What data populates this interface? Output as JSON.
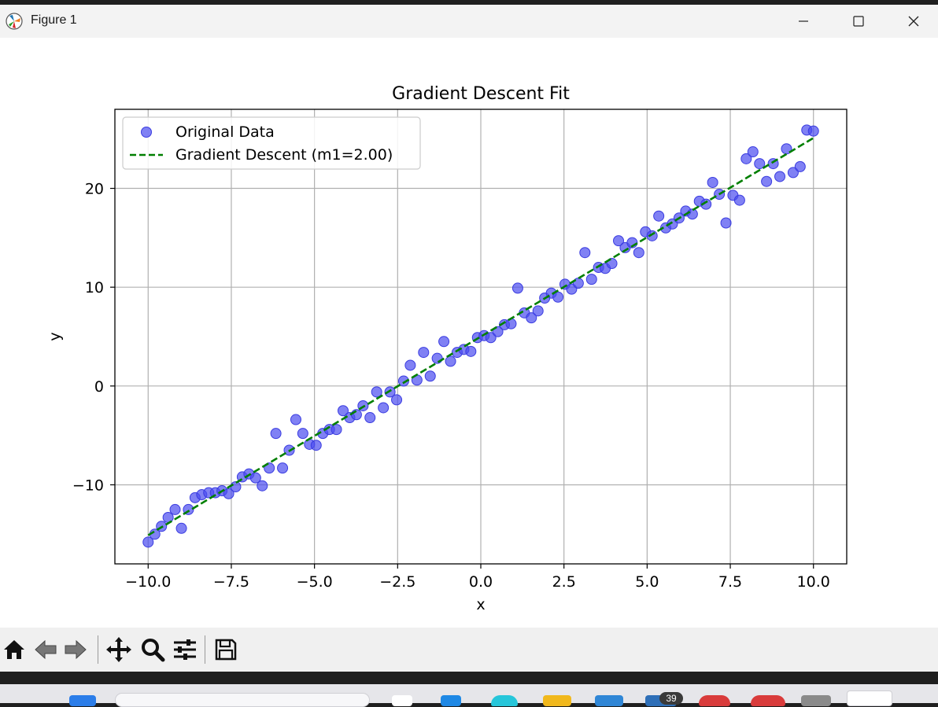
{
  "window": {
    "title": "Figure 1",
    "controls": {
      "minimize": "minimize-icon",
      "maximize": "maximize-icon",
      "close": "close-icon"
    }
  },
  "toolbar": {
    "buttons": [
      "home-icon",
      "back-icon",
      "forward-icon",
      "pan-icon",
      "zoom-icon",
      "configure-subplots-icon",
      "save-icon"
    ]
  },
  "taskbar": {
    "badge": "39"
  },
  "chart_data": {
    "type": "scatter",
    "title": "Gradient Descent Fit",
    "xlabel": "x",
    "ylabel": "y",
    "xlim": [
      -11,
      11
    ],
    "ylim": [
      -18,
      28
    ],
    "xticks": [
      -10.0,
      -7.5,
      -5.0,
      -2.5,
      0.0,
      2.5,
      5.0,
      7.5,
      10.0
    ],
    "xtick_labels": [
      "−10.0",
      "−7.5",
      "−5.0",
      "−2.5",
      "0.0",
      "2.5",
      "5.0",
      "7.5",
      "10.0"
    ],
    "yticks": [
      -10,
      0,
      10,
      20
    ],
    "ytick_labels": [
      "−10",
      "0",
      "10",
      "20"
    ],
    "grid": true,
    "legend_position": "top-left",
    "series": [
      {
        "name": "Original Data",
        "kind": "scatter",
        "color": "#4a4cf0",
        "points": [
          [
            -10.0,
            -15.8
          ],
          [
            -9.8,
            -15.0
          ],
          [
            -9.6,
            -14.2
          ],
          [
            -9.4,
            -13.3
          ],
          [
            -9.19,
            -12.5
          ],
          [
            -9.0,
            -14.4
          ],
          [
            -8.79,
            -12.5
          ],
          [
            -8.59,
            -11.3
          ],
          [
            -8.39,
            -11.0
          ],
          [
            -8.18,
            -10.8
          ],
          [
            -7.98,
            -10.8
          ],
          [
            -7.78,
            -10.6
          ],
          [
            -7.58,
            -10.9
          ],
          [
            -7.37,
            -10.2
          ],
          [
            -7.17,
            -9.2
          ],
          [
            -6.97,
            -8.9
          ],
          [
            -6.77,
            -9.3
          ],
          [
            -6.57,
            -10.1
          ],
          [
            -6.36,
            -8.3
          ],
          [
            -6.16,
            -4.8
          ],
          [
            -5.96,
            -8.3
          ],
          [
            -5.76,
            -6.5
          ],
          [
            -5.56,
            -3.4
          ],
          [
            -5.35,
            -4.8
          ],
          [
            -5.15,
            -5.9
          ],
          [
            -4.95,
            -6.0
          ],
          [
            -4.75,
            -4.8
          ],
          [
            -4.55,
            -4.4
          ],
          [
            -4.34,
            -4.4
          ],
          [
            -4.14,
            -2.5
          ],
          [
            -3.94,
            -3.2
          ],
          [
            -3.74,
            -2.9
          ],
          [
            -3.54,
            -2.0
          ],
          [
            -3.33,
            -3.2
          ],
          [
            -3.13,
            -0.6
          ],
          [
            -2.93,
            -2.2
          ],
          [
            -2.73,
            -0.6
          ],
          [
            -2.53,
            -1.4
          ],
          [
            -2.32,
            0.5
          ],
          [
            -2.12,
            2.1
          ],
          [
            -1.92,
            0.6
          ],
          [
            -1.72,
            3.4
          ],
          [
            -1.52,
            1.0
          ],
          [
            -1.31,
            2.8
          ],
          [
            -1.11,
            4.5
          ],
          [
            -0.91,
            2.5
          ],
          [
            -0.71,
            3.4
          ],
          [
            -0.51,
            3.7
          ],
          [
            -0.3,
            3.5
          ],
          [
            -0.1,
            4.9
          ],
          [
            0.1,
            5.1
          ],
          [
            0.3,
            4.9
          ],
          [
            0.51,
            5.5
          ],
          [
            0.71,
            6.2
          ],
          [
            0.91,
            6.3
          ],
          [
            1.11,
            9.9
          ],
          [
            1.31,
            7.4
          ],
          [
            1.52,
            6.9
          ],
          [
            1.72,
            7.6
          ],
          [
            1.92,
            8.9
          ],
          [
            2.12,
            9.4
          ],
          [
            2.32,
            9.0
          ],
          [
            2.53,
            10.3
          ],
          [
            2.73,
            9.8
          ],
          [
            2.93,
            10.4
          ],
          [
            3.13,
            13.5
          ],
          [
            3.33,
            10.8
          ],
          [
            3.54,
            12.0
          ],
          [
            3.74,
            11.9
          ],
          [
            3.94,
            12.4
          ],
          [
            4.14,
            14.7
          ],
          [
            4.34,
            14.0
          ],
          [
            4.55,
            14.5
          ],
          [
            4.75,
            13.5
          ],
          [
            4.95,
            15.6
          ],
          [
            5.15,
            15.2
          ],
          [
            5.35,
            17.2
          ],
          [
            5.56,
            16.0
          ],
          [
            5.76,
            16.4
          ],
          [
            5.96,
            17.0
          ],
          [
            6.16,
            17.7
          ],
          [
            6.36,
            17.4
          ],
          [
            6.57,
            18.7
          ],
          [
            6.77,
            18.4
          ],
          [
            6.97,
            20.6
          ],
          [
            7.17,
            19.4
          ],
          [
            7.37,
            16.5
          ],
          [
            7.58,
            19.3
          ],
          [
            7.78,
            18.8
          ],
          [
            7.98,
            23.0
          ],
          [
            8.18,
            23.7
          ],
          [
            8.38,
            22.5
          ],
          [
            8.59,
            20.7
          ],
          [
            8.79,
            22.5
          ],
          [
            8.99,
            21.2
          ],
          [
            9.19,
            24.0
          ],
          [
            9.39,
            21.6
          ],
          [
            9.6,
            22.2
          ],
          [
            9.8,
            25.9
          ],
          [
            10.0,
            25.8
          ]
        ]
      },
      {
        "name": "Gradient Descent (m1=2.00)",
        "kind": "line",
        "color": "#007f00",
        "dash": "dashed",
        "x": [
          -10.0,
          10.0
        ],
        "y": [
          -15.1,
          25.1
        ]
      }
    ]
  }
}
